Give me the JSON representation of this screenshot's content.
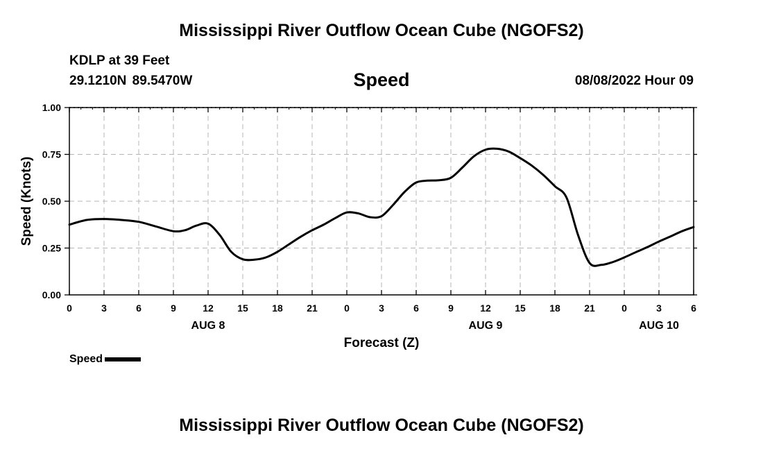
{
  "header": {
    "title": "Mississippi River Outflow Ocean Cube (NGOFS2)",
    "station": "KDLP at 39 Feet",
    "coords": "29.1210N  89.5470W",
    "parameter": "Speed",
    "datetime": "08/08/2022 Hour 09"
  },
  "footer": {
    "title": "Mississippi River Outflow Ocean Cube (NGOFS2)"
  },
  "legend": {
    "label": "Speed"
  },
  "chart_data": {
    "type": "line",
    "title": "Speed",
    "xlabel": "Forecast (Z)",
    "ylabel": "Speed (Knots)",
    "xlim": [
      0,
      54
    ],
    "ylim": [
      0,
      1
    ],
    "yticks": [
      0,
      0.25,
      0.5,
      0.75,
      1.0
    ],
    "ytick_labels": [
      "0.00",
      "0.25",
      "0.50",
      "0.75",
      "1.00"
    ],
    "xticks": [
      0,
      3,
      6,
      9,
      12,
      15,
      18,
      21,
      24,
      27,
      30,
      33,
      36,
      39,
      42,
      45,
      48,
      51,
      54
    ],
    "xtick_labels": [
      "0",
      "3",
      "6",
      "9",
      "12",
      "15",
      "18",
      "21",
      "0",
      "3",
      "6",
      "9",
      "12",
      "15",
      "18",
      "21",
      "0",
      "3",
      "6"
    ],
    "date_labels": [
      {
        "x": 12,
        "label": "AUG 8"
      },
      {
        "x": 36,
        "label": "AUG 9"
      },
      {
        "x": 51,
        "label": "AUG 10"
      }
    ],
    "grid": true,
    "series": [
      {
        "name": "Speed",
        "color": "#000000",
        "x": [
          0,
          1.5,
          3,
          4.5,
          6,
          7.5,
          9,
          10,
          11,
          12,
          13,
          14,
          15,
          16,
          17,
          18,
          19,
          20,
          21,
          22,
          23,
          24,
          25,
          26,
          27,
          28,
          29,
          30,
          31,
          32,
          33,
          34,
          35,
          36,
          37,
          38,
          39,
          40,
          41,
          42,
          43,
          44,
          45,
          46,
          47,
          48,
          49,
          50,
          51,
          52,
          53,
          54
        ],
        "values": [
          0.375,
          0.4,
          0.405,
          0.4,
          0.39,
          0.365,
          0.34,
          0.345,
          0.37,
          0.38,
          0.32,
          0.23,
          0.19,
          0.188,
          0.2,
          0.23,
          0.27,
          0.31,
          0.345,
          0.375,
          0.41,
          0.44,
          0.435,
          0.415,
          0.42,
          0.48,
          0.55,
          0.6,
          0.61,
          0.612,
          0.625,
          0.68,
          0.74,
          0.775,
          0.78,
          0.765,
          0.73,
          0.69,
          0.64,
          0.58,
          0.52,
          0.32,
          0.17,
          0.16,
          0.175,
          0.2,
          0.228,
          0.255,
          0.285,
          0.312,
          0.34,
          0.362
        ]
      }
    ]
  }
}
